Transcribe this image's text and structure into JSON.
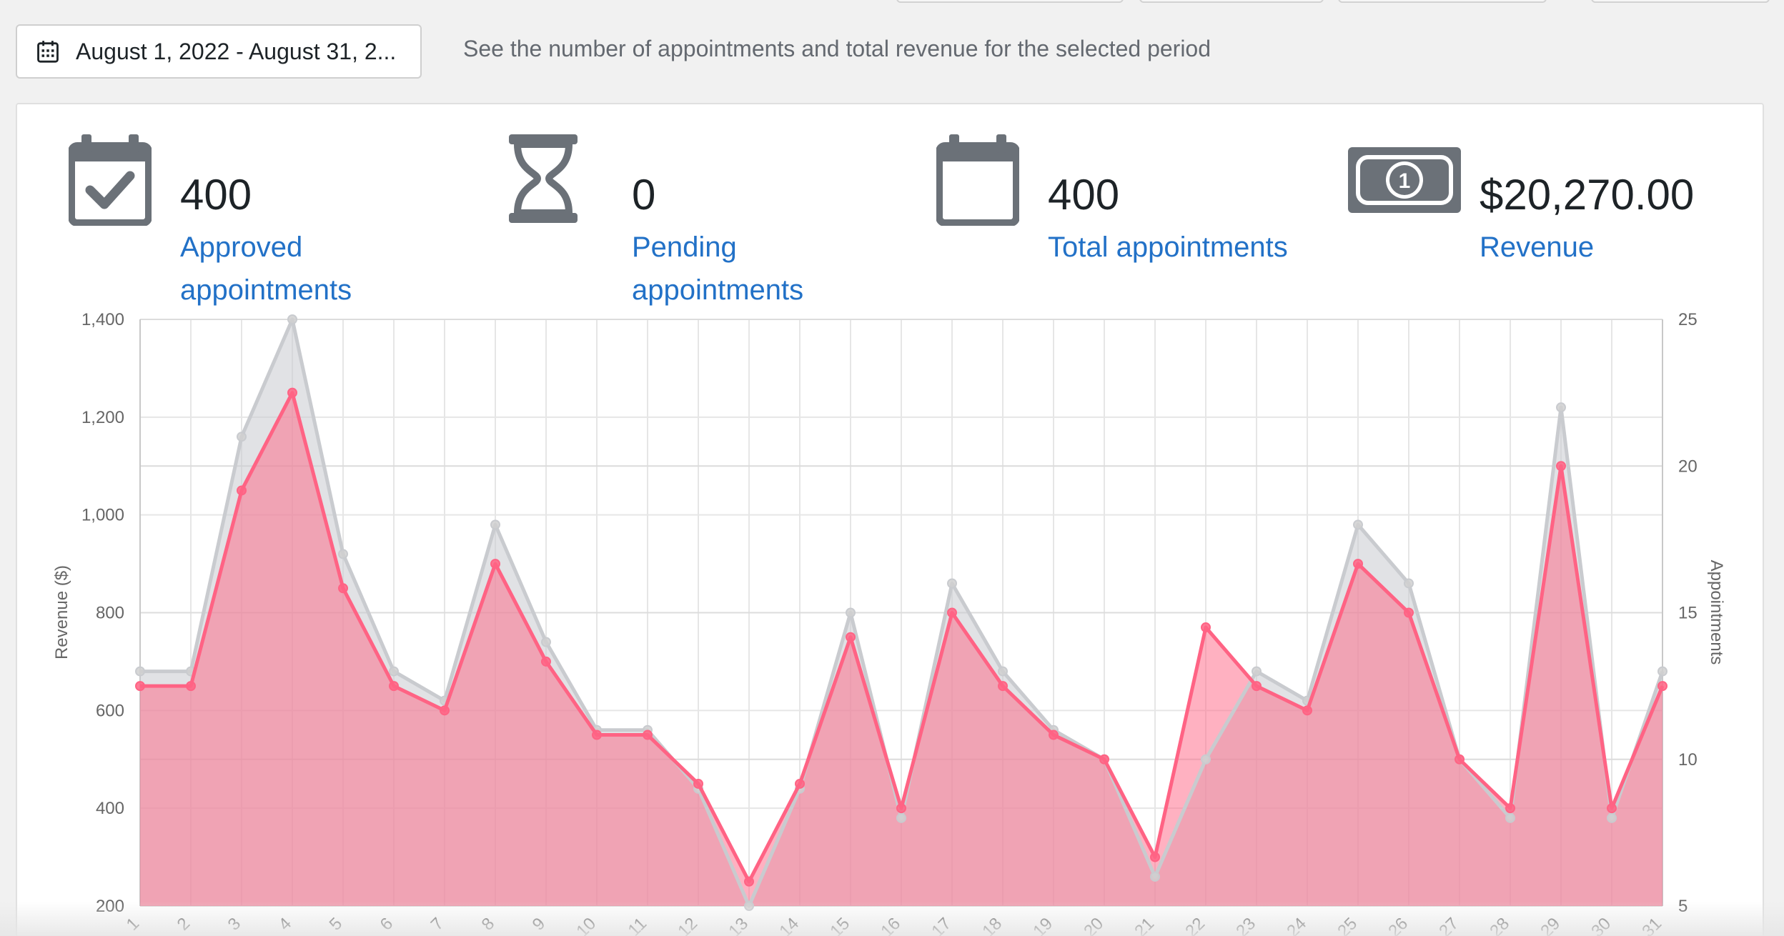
{
  "filter": {
    "date_range": "August 1, 2022 - August 31, 2...",
    "description": "See the number of appointments and total revenue for the selected period"
  },
  "stats": {
    "approved": {
      "value": "400",
      "label_line1": "Approved",
      "label_line2": "appointments",
      "icon": "calendar-check-icon"
    },
    "pending": {
      "value": "0",
      "label_line1": "Pending",
      "label_line2": "appointments",
      "icon": "hourglass-icon"
    },
    "total": {
      "value": "400",
      "label_line1": "Total appointments",
      "label_line2": "",
      "icon": "calendar-icon"
    },
    "revenue": {
      "value": "$20,270.00",
      "label_line1": "Revenue",
      "label_line2": "",
      "icon": "money-bill-icon"
    }
  },
  "colors": {
    "link": "#2271c7",
    "icon": "#6b7178",
    "revenue_series": "#ff6384",
    "appointments_series": "#c9cbcf"
  },
  "chart_data": {
    "type": "line",
    "x": [
      "1",
      "2",
      "3",
      "4",
      "5",
      "6",
      "7",
      "8",
      "9",
      "10",
      "11",
      "12",
      "13",
      "14",
      "15",
      "16",
      "17",
      "18",
      "19",
      "20",
      "21",
      "22",
      "23",
      "24",
      "25",
      "26",
      "27",
      "28",
      "29",
      "30",
      "31"
    ],
    "series": [
      {
        "axis": "left",
        "values": [
          650,
          650,
          1050,
          1250,
          850,
          650,
          600,
          900,
          700,
          550,
          550,
          450,
          250,
          450,
          750,
          400,
          800,
          650,
          550,
          500,
          300,
          770,
          650,
          600,
          900,
          800,
          500,
          400,
          1100,
          400,
          650
        ]
      },
      {
        "axis": "right",
        "values": [
          13,
          13,
          21,
          25,
          17,
          13,
          12,
          18,
          14,
          11,
          11,
          9,
          5,
          9,
          15,
          8,
          16,
          13,
          11,
          10,
          6,
          10,
          13,
          12,
          18,
          16,
          10,
          8,
          22,
          8,
          13
        ]
      }
    ],
    "ylabel": "Revenue ($)",
    "y2label": "Appointments",
    "ylim": [
      200,
      1400
    ],
    "y2lim": [
      5,
      25
    ],
    "yticks": [
      "200",
      "400",
      "600",
      "800",
      "1,000",
      "1,200",
      "1,400"
    ],
    "y2ticks": [
      "5",
      "10",
      "15",
      "20",
      "25"
    ],
    "grid": true,
    "fill": true
  }
}
